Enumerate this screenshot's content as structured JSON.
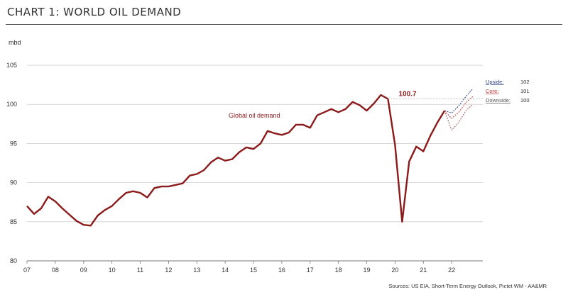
{
  "header": {
    "title": "CHART 1: WORLD OIL DEMAND"
  },
  "footer": {
    "source": "Sources: US EIA, Short-Term Energy Outlook, Pictet WM - AA&MR"
  },
  "chart_data": {
    "type": "line",
    "ylabel": "mbd",
    "ylim": [
      80,
      106
    ],
    "yticks": [
      80,
      85,
      90,
      95,
      100,
      105
    ],
    "yticklabels": [
      "80",
      "85",
      "90",
      "95",
      "100",
      "105"
    ],
    "xlim": [
      2007,
      2023.1
    ],
    "xticks": [
      2007,
      2008,
      2009,
      2010,
      2011,
      2012,
      2013,
      2014,
      2015,
      2016,
      2017,
      2018,
      2019,
      2020,
      2021,
      2022
    ],
    "xticklabels": [
      "07",
      "08",
      "09",
      "10",
      "11",
      "12",
      "13",
      "14",
      "15",
      "16",
      "17",
      "18",
      "19",
      "20",
      "21",
      "22"
    ],
    "grid": "horizontal",
    "colors": {
      "main": "#8b1a1a",
      "upside": "#2e3f7e",
      "core": "#c23b3b",
      "downside": "#9a5c5c"
    },
    "annotations": {
      "series_label": "Global oil demand",
      "peak_value": "100.7"
    },
    "series": [
      {
        "name": "Global oil demand",
        "x": [
          2007.0,
          2007.25,
          2007.5,
          2007.75,
          2008.0,
          2008.25,
          2008.5,
          2008.75,
          2009.0,
          2009.25,
          2009.5,
          2009.75,
          2010.0,
          2010.25,
          2010.5,
          2010.75,
          2011.0,
          2011.25,
          2011.5,
          2011.75,
          2012.0,
          2012.25,
          2012.5,
          2012.75,
          2013.0,
          2013.25,
          2013.5,
          2013.75,
          2014.0,
          2014.25,
          2014.5,
          2014.75,
          2015.0,
          2015.25,
          2015.5,
          2015.75,
          2016.0,
          2016.25,
          2016.5,
          2016.75,
          2017.0,
          2017.25,
          2017.5,
          2017.75,
          2018.0,
          2018.25,
          2018.5,
          2018.75,
          2019.0,
          2019.25,
          2019.5,
          2019.75,
          2020.0,
          2020.25,
          2020.5,
          2020.75,
          2021.0,
          2021.25,
          2021.5,
          2021.75
        ],
        "values": [
          87.0,
          86.0,
          86.7,
          88.2,
          87.6,
          86.7,
          85.9,
          85.1,
          84.6,
          84.5,
          85.8,
          86.5,
          87.0,
          87.9,
          88.7,
          88.9,
          88.7,
          88.1,
          89.3,
          89.5,
          89.5,
          89.7,
          89.9,
          90.9,
          91.1,
          91.6,
          92.6,
          93.2,
          92.8,
          93.0,
          93.9,
          94.5,
          94.3,
          95.0,
          96.6,
          96.3,
          96.1,
          96.4,
          97.4,
          97.4,
          97.0,
          98.6,
          99.0,
          99.4,
          99.0,
          99.4,
          100.3,
          99.9,
          99.2,
          100.1,
          101.2,
          100.7,
          94.8,
          85.0,
          92.7,
          94.6,
          94.0,
          96.0,
          97.7,
          99.2
        ]
      },
      {
        "name": "Upside",
        "label": "Upside",
        "value": "102",
        "x": [
          2021.75,
          2022.0,
          2022.25,
          2022.5,
          2022.75
        ],
        "values": [
          99.2,
          98.9,
          99.8,
          101.0,
          102.0
        ]
      },
      {
        "name": "Core",
        "label": "Core",
        "value": "101",
        "x": [
          2021.75,
          2022.0,
          2022.25,
          2022.5,
          2022.75
        ],
        "values": [
          99.2,
          98.2,
          99.0,
          100.2,
          101.0
        ]
      },
      {
        "name": "Downside",
        "label": "Downside",
        "value": "100",
        "x": [
          2021.75,
          2022.0,
          2022.25,
          2022.5,
          2022.75
        ],
        "values": [
          99.2,
          96.7,
          97.7,
          99.2,
          100.0
        ]
      }
    ]
  }
}
